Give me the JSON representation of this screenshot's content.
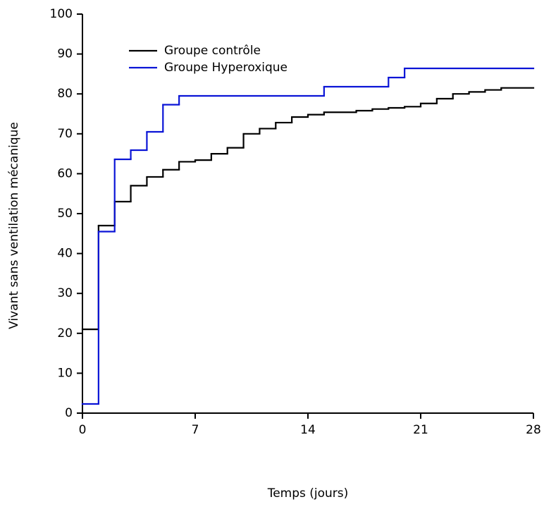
{
  "chart_data": {
    "type": "step",
    "xlabel": "Temps (jours)",
    "ylabel": "Vivant sans ventilation mécanique",
    "xlim": [
      0,
      28
    ],
    "ylim": [
      0,
      100
    ],
    "xticks": [
      0,
      7,
      14,
      21,
      28
    ],
    "yticks": [
      0,
      10,
      20,
      30,
      40,
      50,
      60,
      70,
      80,
      90,
      100
    ],
    "legend": "upper left",
    "series": [
      {
        "name": "Groupe contrôle",
        "color": "#000000",
        "x": [
          0,
          1,
          2,
          3,
          4,
          5,
          6,
          7,
          8,
          9,
          10,
          11,
          12,
          13,
          14,
          15,
          17,
          18,
          19,
          20,
          21,
          22,
          23,
          24,
          25,
          26,
          28
        ],
        "values": [
          21,
          47,
          53,
          57,
          59.2,
          61,
          63,
          63.4,
          65,
          66.5,
          70,
          71.3,
          72.8,
          74.2,
          74.8,
          75.4,
          75.8,
          76.2,
          76.5,
          76.8,
          77.6,
          78.8,
          80,
          80.5,
          81,
          81.5,
          81.5
        ]
      },
      {
        "name": "Groupe Hyperoxique",
        "color": "#0a14d6",
        "x": [
          0,
          1,
          2,
          3,
          4,
          5,
          6,
          15,
          19,
          20,
          28
        ],
        "values": [
          2.3,
          45.5,
          63.6,
          65.9,
          70.5,
          77.3,
          79.5,
          81.8,
          84.1,
          86.4,
          86.4
        ]
      }
    ]
  }
}
